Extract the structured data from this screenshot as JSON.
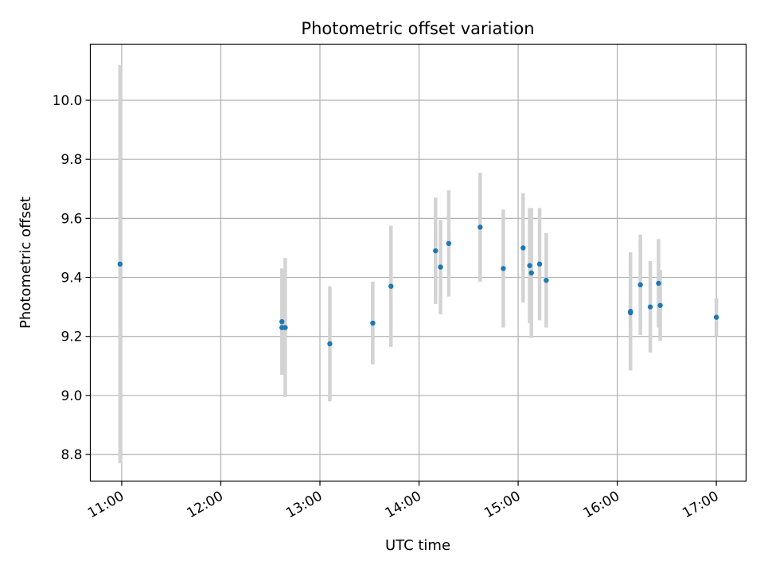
{
  "chart_data": {
    "type": "scatter",
    "title": "Photometric offset variation",
    "xlabel": "UTC time",
    "ylabel": "Photometric offset",
    "xlim": [
      "10:41",
      "17:18"
    ],
    "ylim": [
      8.71,
      10.19
    ],
    "x_ticks": [
      "11:00",
      "12:00",
      "13:00",
      "14:00",
      "15:00",
      "16:00",
      "17:00"
    ],
    "y_ticks": [
      "8.8",
      "9.0",
      "9.2",
      "9.4",
      "9.6",
      "9.8",
      "10.0"
    ],
    "grid": true,
    "x_tick_rotation_deg": 30,
    "colors": {
      "points": "#1f77b4",
      "error_bars": "#d3d3d3",
      "grid": "#b0b0b0"
    },
    "series": [
      {
        "points": [
          {
            "x": "10:59",
            "y": 9.445,
            "err": 0.675
          },
          {
            "x": "12:37",
            "y": 9.25,
            "err": 0.18
          },
          {
            "x": "12:37",
            "y": 9.23,
            "err": 0.15
          },
          {
            "x": "12:39",
            "y": 9.23,
            "err": 0.235
          },
          {
            "x": "13:06",
            "y": 9.175,
            "err": 0.195
          },
          {
            "x": "13:32",
            "y": 9.245,
            "err": 0.14
          },
          {
            "x": "13:43",
            "y": 9.37,
            "err": 0.205
          },
          {
            "x": "14:10",
            "y": 9.49,
            "err": 0.18
          },
          {
            "x": "14:13",
            "y": 9.435,
            "err": 0.16
          },
          {
            "x": "14:18",
            "y": 9.515,
            "err": 0.18
          },
          {
            "x": "14:37",
            "y": 9.57,
            "err": 0.185
          },
          {
            "x": "14:51",
            "y": 9.43,
            "err": 0.2
          },
          {
            "x": "15:03",
            "y": 9.5,
            "err": 0.185
          },
          {
            "x": "15:07",
            "y": 9.44,
            "err": 0.195
          },
          {
            "x": "15:08",
            "y": 9.415,
            "err": 0.22
          },
          {
            "x": "15:13",
            "y": 9.445,
            "err": 0.19
          },
          {
            "x": "15:17",
            "y": 9.39,
            "err": 0.16
          },
          {
            "x": "16:08",
            "y": 9.28,
            "err": 0.19
          },
          {
            "x": "16:08",
            "y": 9.285,
            "err": 0.2
          },
          {
            "x": "16:14",
            "y": 9.375,
            "err": 0.17
          },
          {
            "x": "16:20",
            "y": 9.3,
            "err": 0.155
          },
          {
            "x": "16:25",
            "y": 9.38,
            "err": 0.15
          },
          {
            "x": "16:26",
            "y": 9.305,
            "err": 0.12
          },
          {
            "x": "17:00",
            "y": 9.265,
            "err": 0.065
          }
        ]
      }
    ]
  }
}
